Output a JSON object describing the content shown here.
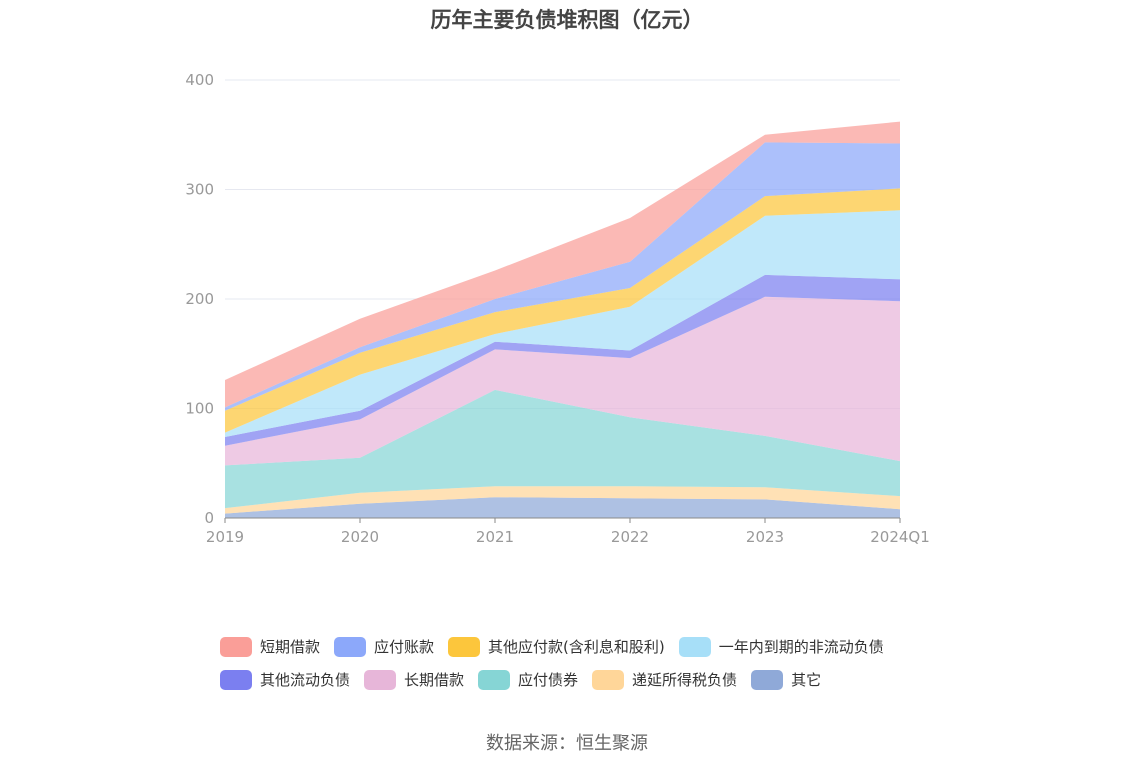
{
  "chart_data": {
    "type": "area",
    "stacked": true,
    "title": "历年主要负债堆积图（亿元）",
    "xlabel": "",
    "ylabel": "",
    "ylim": [
      0,
      400
    ],
    "yticks": [
      0,
      100,
      200,
      300,
      400
    ],
    "categories": [
      "2019",
      "2020",
      "2021",
      "2022",
      "2023",
      "2024Q1"
    ],
    "series": [
      {
        "name": "其它",
        "color": "#8fa9d8",
        "values": [
          4,
          13,
          19,
          18,
          17,
          8
        ]
      },
      {
        "name": "递延所得税负债",
        "color": "#ffd699",
        "values": [
          5,
          10,
          10,
          11,
          11,
          12
        ]
      },
      {
        "name": "应付债券",
        "color": "#86d5d5",
        "values": [
          39,
          32,
          88,
          63,
          47,
          32
        ]
      },
      {
        "name": "长期借款",
        "color": "#e7b6d9",
        "values": [
          18,
          35,
          37,
          54,
          127,
          146
        ]
      },
      {
        "name": "其他流动负债",
        "color": "#7b7ff0",
        "values": [
          8,
          8,
          7,
          7,
          20,
          20
        ]
      },
      {
        "name": "一年内到期的非流动负债",
        "color": "#a7dff8",
        "values": [
          4,
          33,
          7,
          40,
          54,
          63
        ]
      },
      {
        "name": "其他应付款(含利息和股利)",
        "color": "#fcc63c",
        "values": [
          20,
          20,
          20,
          17,
          18,
          20
        ]
      },
      {
        "name": "应付账款",
        "color": "#8ca8fa",
        "values": [
          3,
          5,
          12,
          24,
          49,
          41
        ]
      },
      {
        "name": "短期借款",
        "color": "#fa9e98",
        "values": [
          25,
          26,
          26,
          40,
          7,
          20
        ]
      }
    ],
    "legend_order": [
      "短期借款",
      "应付账款",
      "其他应付款(含利息和股利)",
      "一年内到期的非流动负债",
      "其他流动负债",
      "长期借款",
      "应付债券",
      "递延所得税负债",
      "其它"
    ],
    "grid": true,
    "legend_position": "bottom"
  },
  "source": "数据来源：恒生聚源"
}
